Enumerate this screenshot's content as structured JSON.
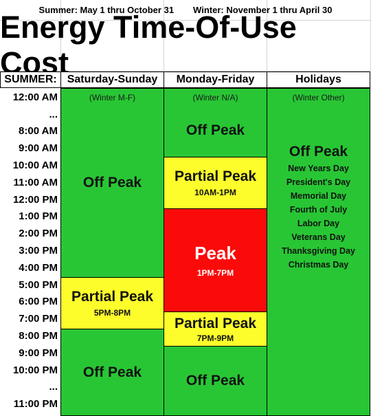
{
  "seasons": {
    "summer": "Summer: May 1 thru October 31",
    "winter": "Winter: November 1 thru April 30"
  },
  "title": "Energy Time-Of-Use Cost",
  "headers": {
    "summer": "SUMMER:",
    "weekend": "Saturday-Sunday",
    "weekday": "Monday-Friday",
    "holidays": "Holidays"
  },
  "times": [
    "12:00 AM",
    "...",
    "8:00 AM",
    "9:00 AM",
    "10:00 AM",
    "11:00 AM",
    "12:00 PM",
    "1:00 PM",
    "2:00 PM",
    "3:00 PM",
    "4:00 PM",
    "5:00 PM",
    "6:00 PM",
    "7:00 PM",
    "8:00 PM",
    "9:00 PM",
    "10:00 PM",
    "...",
    "11:00 PM"
  ],
  "weekend": {
    "note": "(Winter M-F)",
    "off_peak_1": "Off Peak",
    "partial_peak": "Partial Peak",
    "partial_peak_hours": "5PM-8PM",
    "off_peak_2": "Off Peak"
  },
  "weekday": {
    "note": "(Winter N/A)",
    "off_peak_1": "Off Peak",
    "partial_peak_1": "Partial Peak",
    "partial_peak_1_hours": "10AM-1PM",
    "peak": "Peak",
    "peak_hours": "1PM-7PM",
    "partial_peak_2": "Partial Peak",
    "partial_peak_2_hours": "7PM-9PM",
    "off_peak_2": "Off Peak"
  },
  "holidays": {
    "note": "(Winter Other)",
    "label": "Off Peak",
    "list": [
      "New Years Day",
      "President's Day",
      "Memorial Day",
      "Fourth of July",
      "Labor Day",
      "Veterans Day",
      "Thanksgiving  Day",
      "Christmas Day"
    ]
  },
  "colors": {
    "off_peak": "#28c634",
    "partial_peak": "#fdfd2c",
    "peak": "#fb0a0a"
  }
}
